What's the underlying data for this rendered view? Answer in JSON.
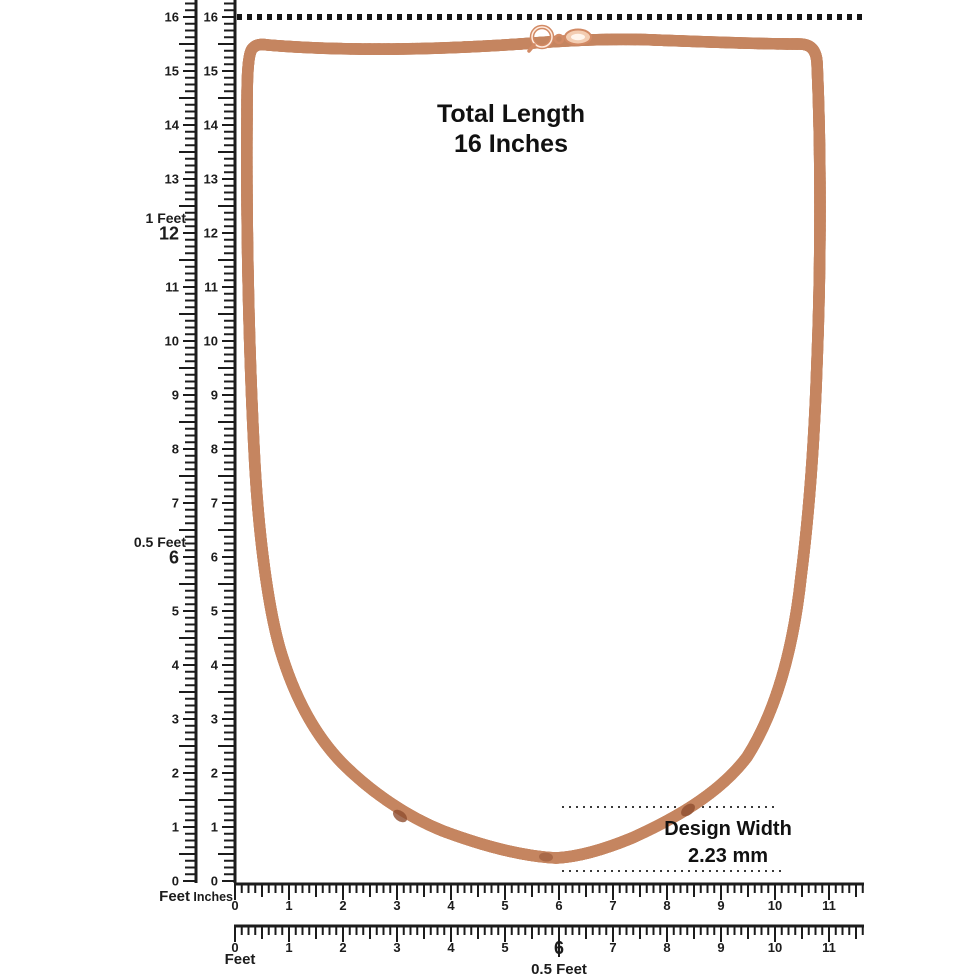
{
  "annotations": {
    "total_length_line1": "Total Length",
    "total_length_line2": "16 Inches",
    "design_width_line1": "Design Width",
    "design_width_line2": "2.23 mm"
  },
  "rulers": {
    "vertical_feet": {
      "unit_label": "Feet",
      "numbers": [
        0,
        1,
        2,
        3,
        4,
        5,
        6,
        7,
        8,
        9,
        10,
        11,
        12,
        13,
        14,
        15,
        16
      ],
      "feet_callouts": [
        {
          "value": 12,
          "label": "1 Feet"
        },
        {
          "value": 6,
          "label": "0.5 Feet"
        }
      ]
    },
    "vertical_inches": {
      "unit_label": "Inches",
      "numbers": [
        0,
        1,
        2,
        3,
        4,
        5,
        6,
        7,
        8,
        9,
        10,
        11,
        12,
        13,
        14,
        15,
        16
      ]
    },
    "horizontal_inches": {
      "numbers": [
        0,
        1,
        2,
        3,
        4,
        5,
        6,
        7,
        8,
        9,
        10,
        11
      ]
    },
    "horizontal_feet": {
      "unit_label": "Feet",
      "numbers": [
        0,
        1,
        2,
        3,
        4,
        5,
        6,
        7,
        8,
        9,
        10,
        11
      ],
      "feet_callouts": [
        {
          "value": 6,
          "label": "0.5 Feet"
        }
      ]
    }
  },
  "colors": {
    "ruler_ink": "#1c1c1c",
    "annotation_ink": "#111111",
    "dotted_line": "#151515",
    "fine_dotted_line": "#3a3a3a",
    "chain_edge": "#c58560",
    "chain_base": "#e9b08d",
    "chain_link_dark": "#c0714c",
    "chain_link_mid": "#d98f69",
    "chain_highlight": "#ffece0",
    "chain_dark_spot": "#8e4e30",
    "clasp_stroke": "#d28a65",
    "tag_fill": "#f3cdb2",
    "tag_inner": "#fff5ec"
  }
}
